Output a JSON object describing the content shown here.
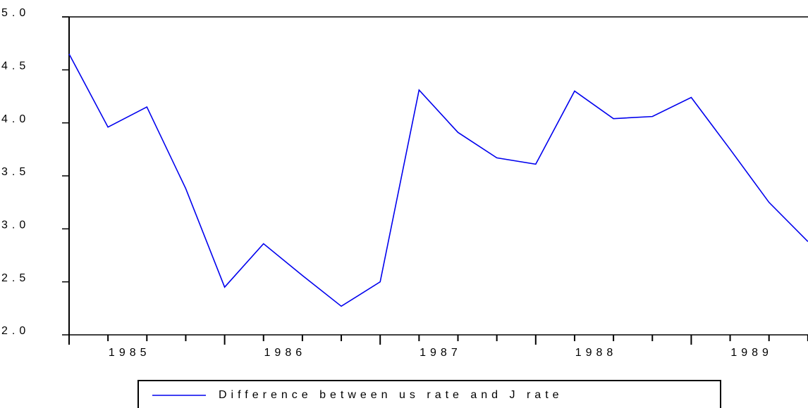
{
  "chart_data": {
    "type": "line",
    "categories": [
      null,
      "1985",
      null,
      null,
      null,
      "1986",
      null,
      null,
      null,
      "1987",
      null,
      null,
      null,
      "1988",
      null,
      null,
      null,
      "1989",
      null,
      null
    ],
    "series": [
      {
        "name": "Difference between us rate and J rate",
        "color": "#0000ee",
        "values": [
          4.65,
          3.96,
          4.15,
          3.38,
          2.45,
          2.86,
          2.56,
          2.27,
          2.5,
          4.31,
          3.91,
          3.67,
          3.61,
          4.3,
          4.04,
          4.06,
          4.24,
          3.75,
          3.25,
          2.88
        ]
      }
    ],
    "ylim": [
      2.0,
      5.0
    ],
    "yticks": [
      {
        "value": 2.0,
        "label": "2.0"
      },
      {
        "value": 2.5,
        "label": "2.5"
      },
      {
        "value": 3.0,
        "label": "3.0"
      },
      {
        "value": 3.5,
        "label": "3.5"
      },
      {
        "value": 4.0,
        "label": "4.0"
      },
      {
        "value": 4.5,
        "label": "4.5"
      },
      {
        "value": 5.0,
        "label": "5.0"
      }
    ],
    "legend": "bottom"
  }
}
